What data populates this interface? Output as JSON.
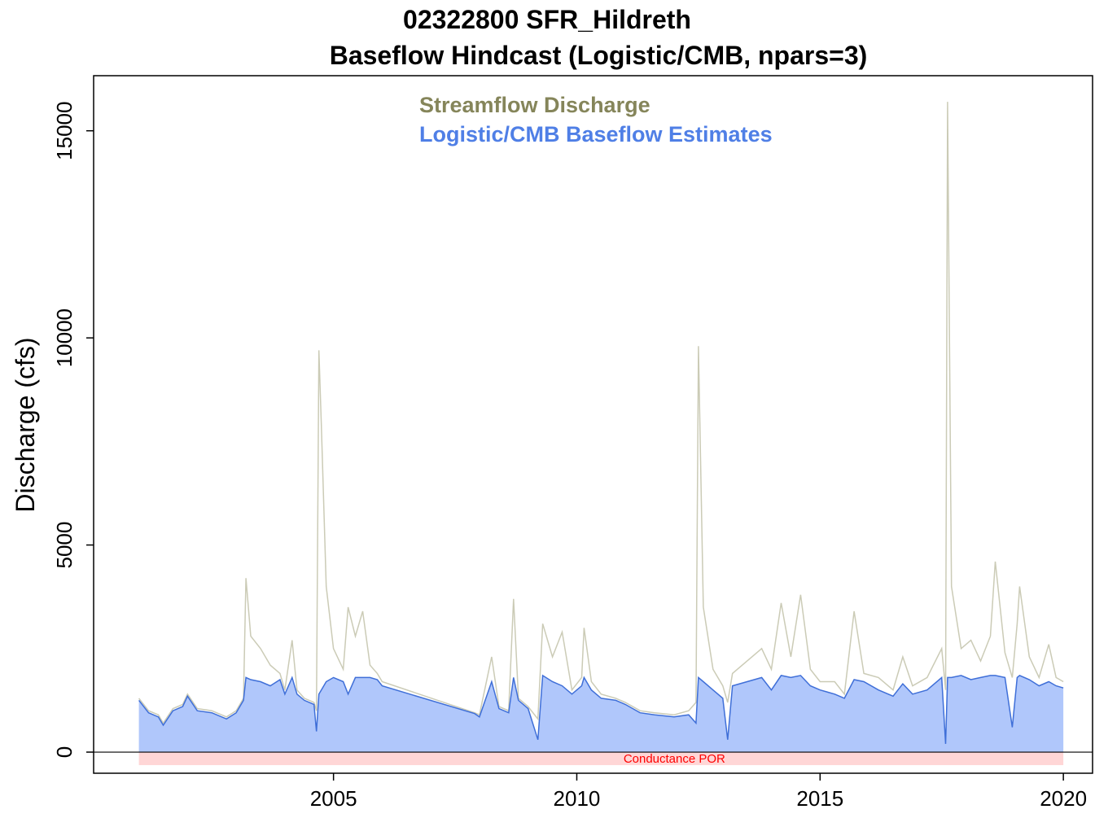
{
  "chart_data": {
    "type": "line-area",
    "title": "02322800 SFR_Hildreth",
    "subtitle": "Baseflow Hindcast (Logistic/CMB, npars=3)",
    "y_label": "Discharge (cfs)",
    "x": [
      2001.0,
      2001.2,
      2001.4,
      2001.5,
      2001.7,
      2001.9,
      2002.0,
      2002.2,
      2002.5,
      2002.8,
      2003.0,
      2003.15,
      2003.2,
      2003.3,
      2003.5,
      2003.7,
      2003.9,
      2004.0,
      2004.15,
      2004.25,
      2004.4,
      2004.6,
      2004.65,
      2004.7,
      2004.75,
      2004.85,
      2005.0,
      2005.2,
      2005.3,
      2005.45,
      2005.6,
      2005.75,
      2005.9,
      2006.0,
      2007.9,
      2008.0,
      2008.25,
      2008.4,
      2008.6,
      2008.7,
      2008.8,
      2009.0,
      2009.2,
      2009.3,
      2009.5,
      2009.7,
      2009.9,
      2010.1,
      2010.15,
      2010.3,
      2010.5,
      2010.8,
      2011.0,
      2011.3,
      2011.6,
      2012.0,
      2012.3,
      2012.45,
      2012.5,
      2012.6,
      2012.8,
      2013.0,
      2013.1,
      2013.2,
      2013.5,
      2013.8,
      2014.0,
      2014.2,
      2014.4,
      2014.6,
      2014.8,
      2015.0,
      2015.3,
      2015.5,
      2015.7,
      2015.9,
      2016.2,
      2016.5,
      2016.7,
      2016.9,
      2017.2,
      2017.5,
      2017.58,
      2017.62,
      2017.7,
      2017.9,
      2018.1,
      2018.3,
      2018.5,
      2018.6,
      2018.8,
      2018.95,
      2019.05,
      2019.1,
      2019.3,
      2019.5,
      2019.7,
      2019.85,
      2020.0
    ],
    "series": [
      {
        "name": "Streamflow Discharge",
        "color": "#85855a",
        "line_color": "#cbcbb6",
        "values": [
          1300,
          1000,
          900,
          700,
          1050,
          1150,
          1400,
          1050,
          1000,
          850,
          1000,
          1300,
          4200,
          2800,
          2500,
          2100,
          1900,
          1500,
          2700,
          1500,
          1300,
          1200,
          1000,
          9700,
          7900,
          4000,
          2500,
          2000,
          3500,
          2800,
          3400,
          2100,
          1900,
          1700,
          950,
          900,
          2300,
          1100,
          1000,
          3700,
          1300,
          1100,
          800,
          3100,
          2300,
          2900,
          1500,
          1800,
          3000,
          1700,
          1400,
          1300,
          1200,
          1000,
          950,
          900,
          1000,
          1200,
          9800,
          3500,
          2000,
          1600,
          1200,
          1900,
          2200,
          2500,
          2000,
          3600,
          2300,
          3800,
          2000,
          1700,
          1700,
          1400,
          3400,
          1900,
          1800,
          1500,
          2300,
          1600,
          1800,
          2500,
          1500,
          15700,
          4000,
          2500,
          2700,
          2200,
          2800,
          4600,
          2400,
          1800,
          3100,
          4000,
          2300,
          1800,
          2600,
          1800,
          1700
        ]
      },
      {
        "name": "Logistic/CMB Baseflow Estimates",
        "color": "#4f7fe6",
        "line_color": "#3f6fd8",
        "fill_color": "#b0c7fb",
        "values": [
          1250,
          950,
          850,
          650,
          1000,
          1100,
          1350,
          1000,
          950,
          800,
          950,
          1250,
          1800,
          1750,
          1700,
          1600,
          1750,
          1400,
          1800,
          1400,
          1250,
          1150,
          500,
          1400,
          1500,
          1700,
          1800,
          1700,
          1400,
          1800,
          1800,
          1800,
          1750,
          1600,
          930,
          850,
          1700,
          1050,
          950,
          1800,
          1250,
          1050,
          300,
          1850,
          1700,
          1600,
          1400,
          1600,
          1800,
          1500,
          1300,
          1250,
          1150,
          950,
          900,
          850,
          900,
          700,
          1800,
          1700,
          1500,
          1300,
          300,
          1600,
          1700,
          1800,
          1500,
          1850,
          1800,
          1850,
          1600,
          1500,
          1400,
          1300,
          1750,
          1700,
          1500,
          1350,
          1650,
          1400,
          1500,
          1800,
          200,
          1800,
          1800,
          1850,
          1750,
          1800,
          1850,
          1850,
          1800,
          600,
          1800,
          1850,
          1750,
          1600,
          1700,
          1600,
          1550
        ]
      }
    ],
    "por": {
      "label": "Conductance POR",
      "start": 2001,
      "end": 2020,
      "color": "#ff0000",
      "fill": "#ffd6d6"
    },
    "xlim": [
      2000.07,
      2020.6
    ],
    "ylim": [
      -510,
      16330
    ],
    "xticks": [
      2005,
      2010,
      2015,
      2020
    ],
    "yticks": [
      0,
      5000,
      10000,
      15000
    ]
  }
}
